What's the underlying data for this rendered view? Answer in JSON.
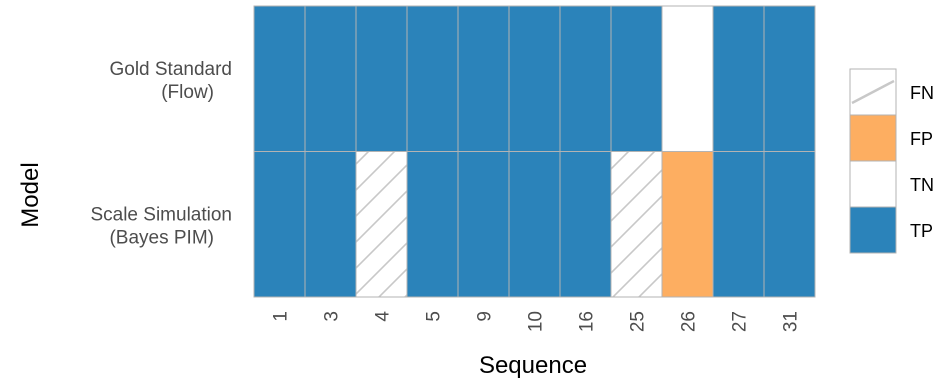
{
  "chart_data": {
    "type": "heatmap",
    "xlabel": "Sequence",
    "ylabel": "Model",
    "x": [
      "1",
      "3",
      "4",
      "5",
      "9",
      "10",
      "16",
      "25",
      "26",
      "27",
      "31"
    ],
    "y": [
      {
        "line1": "Gold Standard",
        "line2": "(Flow)"
      },
      {
        "line1": "Scale Simulation",
        "line2": "(Bayes PIM)"
      }
    ],
    "cells": [
      [
        "TP",
        "TP",
        "TP",
        "TP",
        "TP",
        "TP",
        "TP",
        "TP",
        "TN",
        "TP",
        "TP"
      ],
      [
        "TP",
        "TP",
        "FN",
        "TP",
        "TP",
        "TP",
        "TP",
        "FN",
        "FP",
        "TP",
        "TP"
      ]
    ],
    "legend": [
      "FN",
      "FP",
      "TN",
      "TP"
    ],
    "legend_position": "right",
    "colors": {
      "FN": "#ffffff",
      "FP": "#fdae61",
      "TN": "#ffffff",
      "TP": "#2b83ba",
      "cell_border": "#b3b3b3",
      "hatch": "#c8c8c8"
    },
    "hatched_category": "FN",
    "grid": false
  }
}
